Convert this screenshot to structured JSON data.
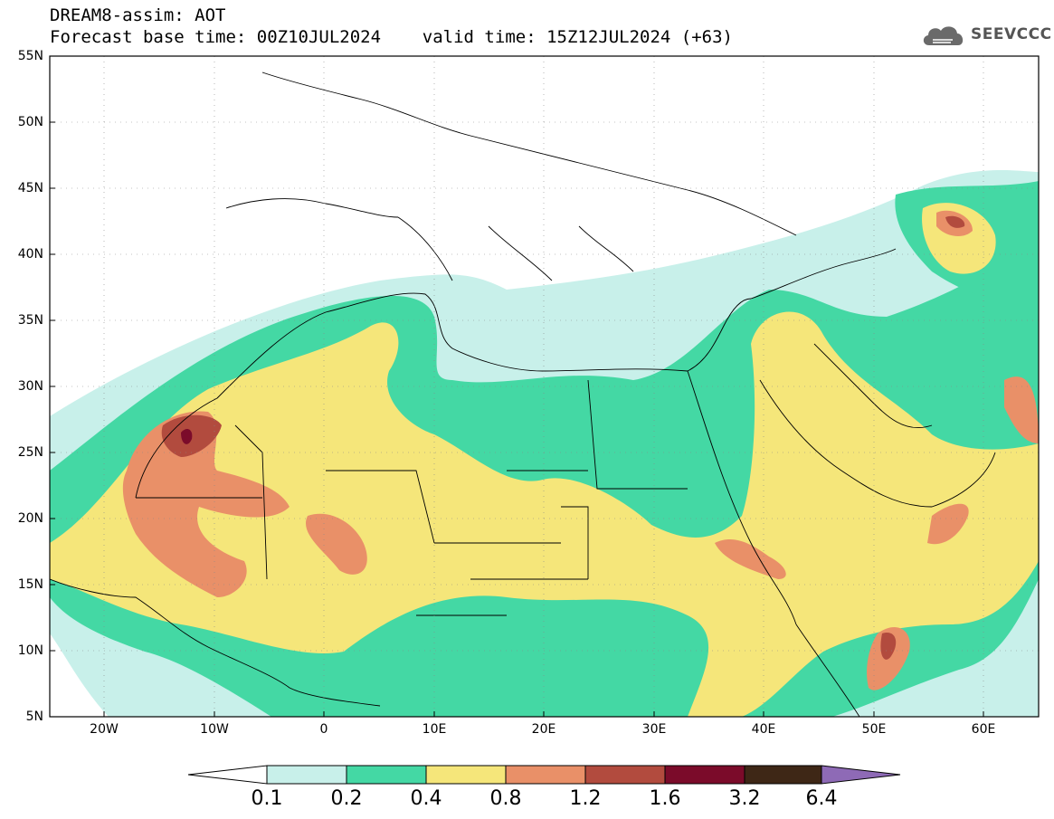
{
  "header": {
    "title_line1": "DREAM8-assim: AOT",
    "title_line2": "Forecast base time: 00Z10JUL2024    valid time: 15Z12JUL2024 (+63)",
    "brand": "SEEVCCC",
    "brand_icon": "cloud-icon"
  },
  "map": {
    "variable": "AOT",
    "lon_range": [
      -25,
      65
    ],
    "lat_range": [
      5,
      55
    ],
    "lat_labels": [
      "55N",
      "50N",
      "45N",
      "40N",
      "35N",
      "30N",
      "25N",
      "20N",
      "15N",
      "10N",
      "5N"
    ],
    "lon_labels": [
      "20W",
      "10W",
      "0",
      "10E",
      "20E",
      "30E",
      "40E",
      "50E",
      "60E"
    ]
  },
  "colorbar": {
    "labels": [
      "0.1",
      "0.2",
      "0.4",
      "0.8",
      "1.2",
      "1.6",
      "3.2",
      "6.4"
    ],
    "colors": [
      "#c8f0ea",
      "#44d8a4",
      "#f5e67a",
      "#e99068",
      "#b24b3e",
      "#7b0b2a",
      "#3e2716",
      "#8e6ab6"
    ],
    "lower_arrow_color": "#ffffff"
  },
  "chart_data": {
    "type": "heatmap",
    "title": "DREAM8-assim: AOT",
    "xlabel": "",
    "ylabel": "",
    "xlim": [
      -25,
      65
    ],
    "ylim": [
      5,
      55
    ],
    "legend": "bottom",
    "levels": [
      0.1,
      0.2,
      0.4,
      0.8,
      1.2,
      1.6,
      3.2,
      6.4
    ],
    "colors": [
      "#c8f0ea",
      "#44d8a4",
      "#f5e67a",
      "#e99068",
      "#b24b3e",
      "#7b0b2a",
      "#3e2716",
      "#8e6ab6"
    ]
  }
}
